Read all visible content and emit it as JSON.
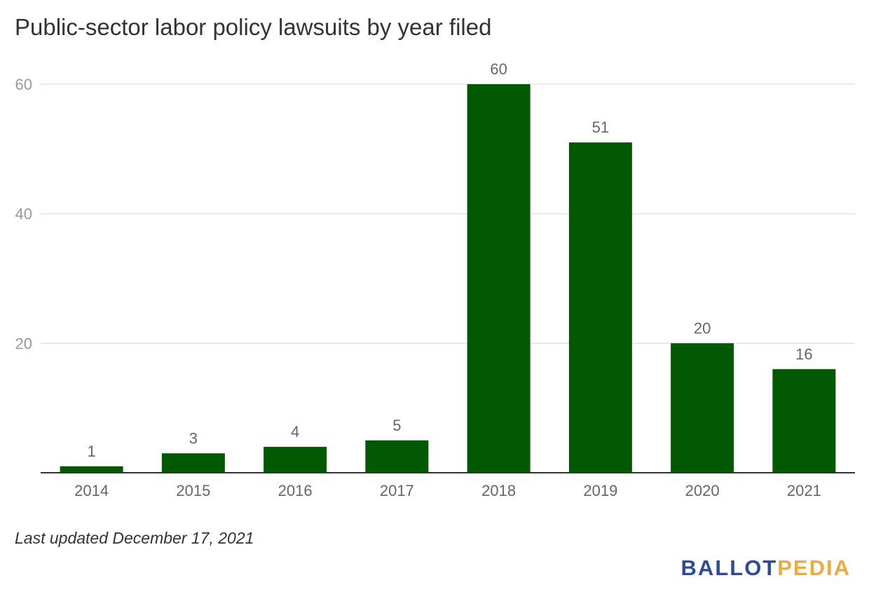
{
  "chart_data": {
    "type": "bar",
    "title": "Public-sector labor policy lawsuits by year filed",
    "categories": [
      "2014",
      "2015",
      "2016",
      "2017",
      "2018",
      "2019",
      "2020",
      "2021"
    ],
    "values": [
      1,
      3,
      4,
      5,
      60,
      51,
      20,
      16
    ],
    "data_labels": [
      "1",
      "3",
      "4",
      "5",
      "60",
      "51",
      "20",
      "16"
    ],
    "y_ticks": [
      20,
      40,
      60
    ],
    "y_tick_labels": [
      "20",
      "40",
      "60"
    ],
    "ylim": [
      0,
      60
    ],
    "xlabel": "",
    "ylabel": "",
    "grid": true,
    "legend": "none",
    "colors": {
      "bar": "#025902",
      "grid": "#e3e3e3",
      "axis": "#333333",
      "tick_text": "#999999",
      "label_text": "#666666"
    }
  },
  "footnote": "Last updated December 17, 2021",
  "logo": {
    "part1": "BALLOT",
    "part2": "PEDIA",
    "color1": "#2b4b9b",
    "color2": "#f2a93b"
  }
}
